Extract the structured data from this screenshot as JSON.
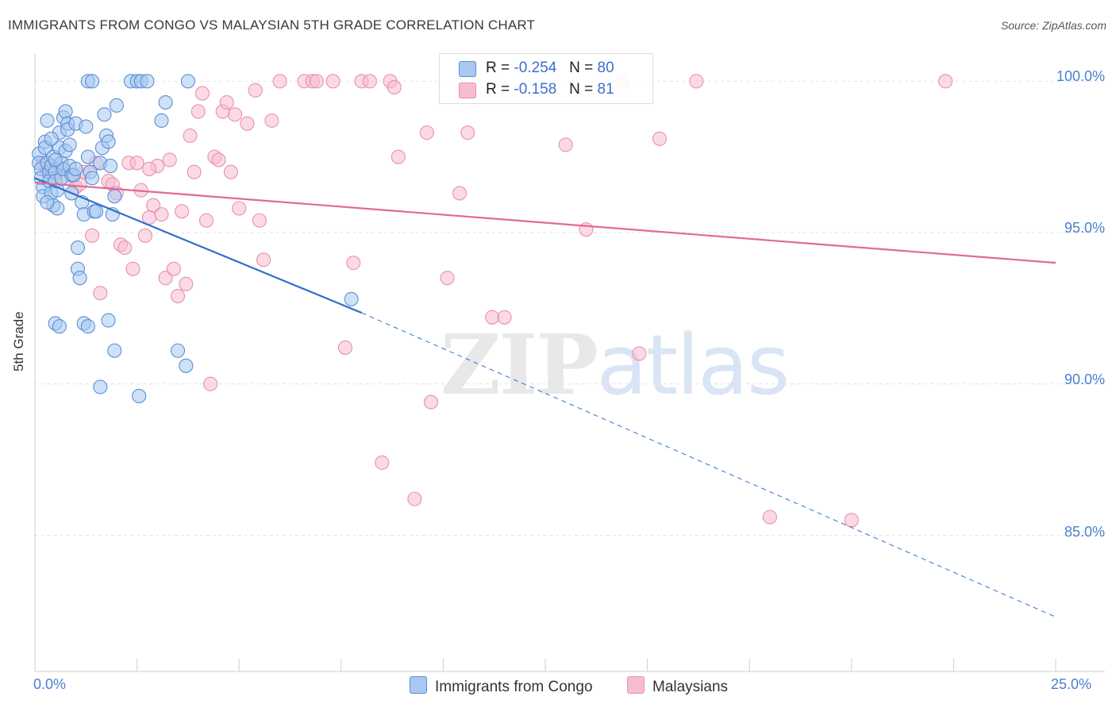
{
  "header": {
    "title": "IMMIGRANTS FROM CONGO VS MALAYSIAN 5TH GRADE CORRELATION CHART",
    "source": "Source: ZipAtlas.com"
  },
  "watermark": {
    "zip": "ZIP",
    "atlas": "atlas"
  },
  "legend": {
    "rows": [
      {
        "r_label": "R =",
        "r_value": "-0.254",
        "n_label": "N =",
        "n_value": "80"
      },
      {
        "r_label": "R =",
        "r_value": "-0.158",
        "n_label": "N =",
        "n_value": "81"
      }
    ],
    "series_names": [
      "Immigrants from Congo",
      "Malaysians"
    ]
  },
  "colors": {
    "congo_fill": "#a8c8f0",
    "congo_stroke": "#5a8fd8",
    "congo_line": "#2f6fcc",
    "malay_fill": "#f8bcd0",
    "malay_stroke": "#e890b0",
    "malay_line": "#e06a94",
    "grid": "#e2e2e2",
    "tick_text": "#4a7fd0"
  },
  "chart_data": {
    "type": "scatter",
    "xlabel": "",
    "ylabel": "5th Grade",
    "xlim": [
      0,
      25
    ],
    "ylim": [
      80.5,
      100.9
    ],
    "x_tick_labels": [
      "0.0%",
      "25.0%"
    ],
    "y_ticks": [
      100,
      95,
      90,
      85
    ],
    "y_tick_labels": [
      "100.0%",
      "95.0%",
      "90.0%",
      "85.0%"
    ],
    "grid": true,
    "legend_position": "top-center",
    "series": [
      {
        "name": "Immigrants from Congo",
        "trend": {
          "x0": 0,
          "y0": 96.8,
          "x1": 8.0,
          "y1": 92.35,
          "dash_to_x": 25,
          "dash_to_y": 82.3
        },
        "points": [
          [
            0.1,
            97.6
          ],
          [
            0.1,
            97.3
          ],
          [
            0.15,
            97.1
          ],
          [
            0.15,
            96.8
          ],
          [
            0.2,
            96.5
          ],
          [
            0.2,
            96.2
          ],
          [
            0.25,
            98.0
          ],
          [
            0.25,
            97.8
          ],
          [
            0.3,
            98.7
          ],
          [
            0.3,
            97.3
          ],
          [
            0.35,
            97.0
          ],
          [
            0.35,
            96.7
          ],
          [
            0.4,
            97.2
          ],
          [
            0.4,
            96.3
          ],
          [
            0.45,
            95.9
          ],
          [
            0.45,
            97.5
          ],
          [
            0.5,
            97.0
          ],
          [
            0.5,
            96.7
          ],
          [
            0.55,
            96.4
          ],
          [
            0.55,
            95.8
          ],
          [
            0.6,
            98.3
          ],
          [
            0.6,
            97.8
          ],
          [
            0.65,
            97.3
          ],
          [
            0.65,
            96.8
          ],
          [
            0.7,
            98.8
          ],
          [
            0.7,
            97.1
          ],
          [
            0.75,
            99.0
          ],
          [
            0.75,
            97.7
          ],
          [
            0.8,
            98.6
          ],
          [
            0.8,
            98.4
          ],
          [
            0.85,
            97.9
          ],
          [
            0.85,
            97.2
          ],
          [
            0.9,
            96.9
          ],
          [
            0.95,
            96.9
          ],
          [
            1.0,
            98.6
          ],
          [
            1.0,
            97.1
          ],
          [
            1.05,
            94.5
          ],
          [
            1.05,
            93.8
          ],
          [
            1.1,
            93.5
          ],
          [
            1.15,
            96.0
          ],
          [
            1.2,
            95.6
          ],
          [
            1.25,
            98.5
          ],
          [
            1.3,
            97.5
          ],
          [
            1.35,
            97.0
          ],
          [
            1.4,
            96.8
          ],
          [
            1.45,
            95.7
          ],
          [
            1.5,
            95.7
          ],
          [
            1.6,
            97.3
          ],
          [
            1.65,
            97.8
          ],
          [
            1.7,
            98.9
          ],
          [
            1.75,
            98.2
          ],
          [
            1.8,
            98.0
          ],
          [
            1.85,
            97.2
          ],
          [
            1.9,
            95.6
          ],
          [
            1.95,
            96.2
          ],
          [
            2.0,
            99.2
          ],
          [
            1.2,
            92.0
          ],
          [
            1.3,
            91.9
          ],
          [
            1.3,
            100.0
          ],
          [
            1.4,
            100.0
          ],
          [
            1.6,
            89.9
          ],
          [
            1.8,
            92.1
          ],
          [
            1.95,
            91.1
          ],
          [
            2.35,
            100.0
          ],
          [
            2.5,
            100.0
          ],
          [
            2.55,
            89.6
          ],
          [
            2.6,
            100.0
          ],
          [
            2.75,
            100.0
          ],
          [
            3.1,
            98.7
          ],
          [
            3.2,
            99.3
          ],
          [
            3.5,
            91.1
          ],
          [
            3.7,
            90.6
          ],
          [
            3.75,
            100.0
          ],
          [
            7.75,
            92.8
          ],
          [
            0.5,
            92.0
          ],
          [
            0.6,
            91.9
          ],
          [
            0.3,
            96.0
          ],
          [
            0.4,
            98.1
          ],
          [
            0.5,
            97.4
          ],
          [
            0.9,
            96.3
          ]
        ]
      },
      {
        "name": "Malaysians",
        "trend": {
          "x0": 0,
          "y0": 96.65,
          "x1": 25,
          "y1": 94.0
        },
        "points": [
          [
            0.2,
            97.3
          ],
          [
            0.3,
            97.0
          ],
          [
            0.4,
            97.2
          ],
          [
            0.5,
            96.9
          ],
          [
            0.7,
            97.1
          ],
          [
            0.8,
            96.8
          ],
          [
            1.0,
            96.5
          ],
          [
            1.2,
            97.0
          ],
          [
            1.4,
            94.9
          ],
          [
            1.5,
            97.3
          ],
          [
            1.6,
            93.0
          ],
          [
            1.8,
            96.7
          ],
          [
            1.9,
            96.6
          ],
          [
            2.0,
            96.3
          ],
          [
            2.1,
            94.6
          ],
          [
            2.2,
            94.5
          ],
          [
            2.3,
            97.3
          ],
          [
            2.4,
            93.8
          ],
          [
            2.5,
            97.3
          ],
          [
            2.6,
            96.4
          ],
          [
            2.7,
            94.9
          ],
          [
            2.8,
            95.5
          ],
          [
            2.9,
            95.9
          ],
          [
            3.0,
            97.2
          ],
          [
            3.1,
            95.6
          ],
          [
            3.2,
            93.5
          ],
          [
            3.3,
            97.4
          ],
          [
            3.4,
            93.8
          ],
          [
            3.5,
            92.9
          ],
          [
            3.6,
            95.7
          ],
          [
            3.7,
            93.3
          ],
          [
            3.8,
            98.2
          ],
          [
            4.0,
            99.0
          ],
          [
            4.1,
            99.6
          ],
          [
            4.2,
            95.4
          ],
          [
            4.3,
            90.0
          ],
          [
            4.4,
            97.5
          ],
          [
            4.5,
            97.4
          ],
          [
            4.6,
            99.0
          ],
          [
            4.7,
            99.3
          ],
          [
            4.8,
            97.0
          ],
          [
            4.9,
            98.9
          ],
          [
            5.0,
            95.8
          ],
          [
            5.2,
            98.6
          ],
          [
            5.4,
            99.7
          ],
          [
            5.5,
            95.4
          ],
          [
            5.6,
            94.1
          ],
          [
            5.8,
            98.7
          ],
          [
            6.0,
            100.0
          ],
          [
            6.6,
            100.0
          ],
          [
            6.8,
            100.0
          ],
          [
            6.9,
            100.0
          ],
          [
            7.3,
            100.0
          ],
          [
            7.6,
            91.2
          ],
          [
            7.8,
            94.0
          ],
          [
            8.0,
            100.0
          ],
          [
            8.2,
            100.0
          ],
          [
            8.5,
            87.4
          ],
          [
            8.7,
            100.0
          ],
          [
            8.8,
            99.8
          ],
          [
            8.9,
            97.5
          ],
          [
            9.3,
            86.2
          ],
          [
            9.6,
            98.3
          ],
          [
            9.7,
            89.4
          ],
          [
            10.1,
            93.5
          ],
          [
            10.4,
            96.3
          ],
          [
            10.6,
            98.3
          ],
          [
            11.2,
            92.2
          ],
          [
            11.5,
            92.2
          ],
          [
            13.0,
            97.9
          ],
          [
            13.5,
            95.1
          ],
          [
            14.4,
            100.0
          ],
          [
            14.8,
            91.0
          ],
          [
            15.3,
            98.1
          ],
          [
            16.2,
            100.0
          ],
          [
            18.0,
            85.6
          ],
          [
            20.0,
            85.5
          ],
          [
            22.3,
            100.0
          ],
          [
            1.1,
            96.6
          ],
          [
            2.8,
            97.1
          ],
          [
            3.9,
            97.0
          ]
        ]
      }
    ]
  }
}
